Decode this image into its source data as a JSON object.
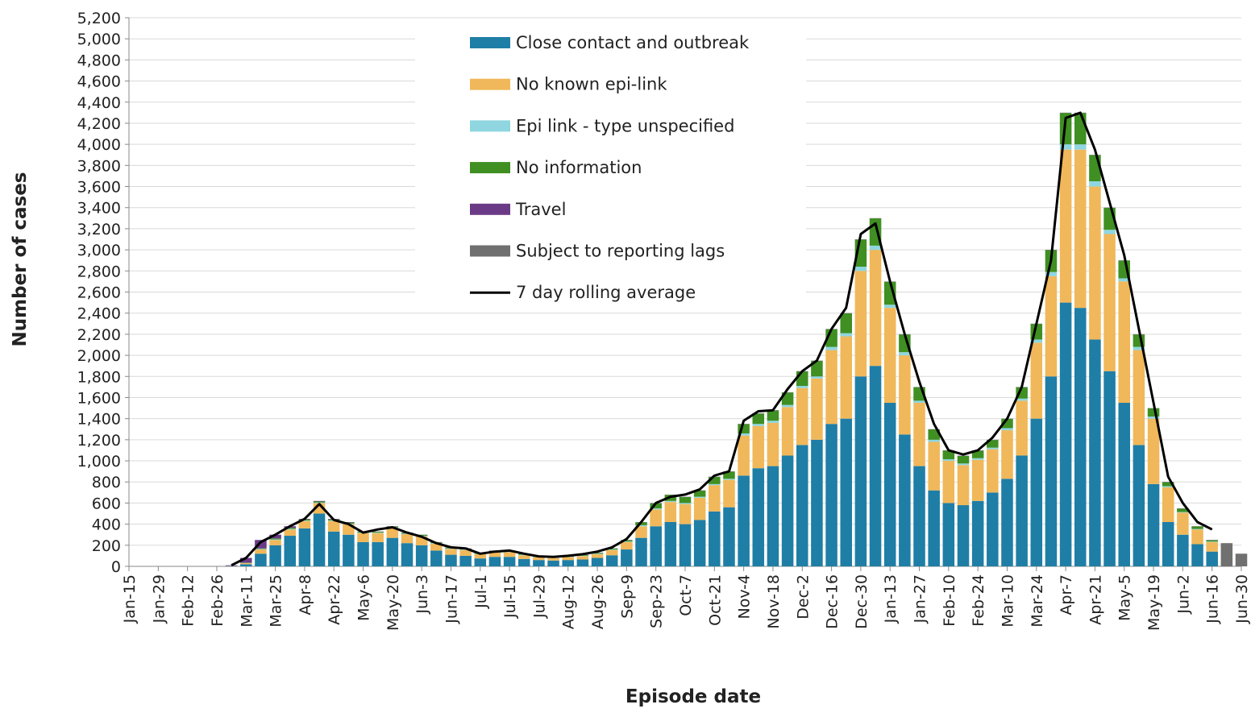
{
  "chart_data": {
    "type": "bar",
    "stacked": true,
    "x_label": "Episode date",
    "y_label": "Number of cases",
    "categories": [
      "Jan-15",
      null,
      "Jan-29",
      null,
      "Feb-12",
      null,
      "Feb-26",
      null,
      "Mar-11",
      null,
      "Mar-25",
      null,
      "Apr-8",
      null,
      "Apr-22",
      null,
      "May-6",
      null,
      "May-20",
      null,
      "Jun-3",
      null,
      "Jun-17",
      null,
      "Jul-1",
      null,
      "Jul-15",
      null,
      "Jul-29",
      null,
      "Aug-12",
      null,
      "Aug-26",
      null,
      "Sep-9",
      null,
      "Sep-23",
      null,
      "Oct-7",
      null,
      "Oct-21",
      null,
      "Nov-4",
      null,
      "Nov-18",
      null,
      "Dec-2",
      null,
      "Dec-16",
      null,
      "Dec-30",
      null,
      "Jan-13",
      null,
      "Jan-27",
      null,
      "Feb-10",
      null,
      "Feb-24",
      null,
      "Mar-10",
      null,
      "Mar-24",
      null,
      "Apr-7",
      null,
      "Apr-21",
      null,
      "May-5",
      null,
      "May-19",
      null,
      "Jun-2",
      null,
      "Jun-16",
      null,
      "Jun-30"
    ],
    "series": [
      {
        "name": "Close contact and outbreak",
        "color": "#1f7ea6",
        "values": [
          0,
          0,
          0,
          0,
          0,
          0,
          0,
          3,
          20,
          120,
          200,
          290,
          360,
          500,
          330,
          300,
          230,
          230,
          270,
          220,
          200,
          150,
          110,
          100,
          75,
          90,
          90,
          70,
          60,
          55,
          60,
          65,
          80,
          105,
          160,
          270,
          380,
          420,
          400,
          440,
          520,
          560,
          860,
          930,
          950,
          1050,
          1150,
          1200,
          1350,
          1400,
          1800,
          1900,
          1550,
          1250,
          950,
          720,
          600,
          580,
          620,
          700,
          830,
          1050,
          1400,
          1800,
          2500,
          2450,
          2150,
          1850,
          1550,
          1150,
          780,
          420,
          300,
          210,
          140,
          0,
          0
        ]
      },
      {
        "name": "No known epi-link",
        "color": "#f0b85a",
        "values": [
          0,
          0,
          0,
          0,
          0,
          0,
          0,
          2,
          10,
          40,
          50,
          60,
          70,
          100,
          100,
          100,
          85,
          85,
          95,
          85,
          85,
          65,
          55,
          55,
          40,
          45,
          45,
          35,
          28,
          24,
          28,
          32,
          36,
          50,
          70,
          110,
          160,
          190,
          190,
          210,
          250,
          260,
          380,
          400,
          410,
          460,
          540,
          580,
          700,
          780,
          1000,
          1100,
          900,
          750,
          600,
          460,
          400,
          380,
          390,
          410,
          460,
          520,
          720,
          950,
          1450,
          1500,
          1450,
          1300,
          1150,
          900,
          620,
          330,
          210,
          140,
          90,
          0,
          0
        ]
      },
      {
        "name": "Epi link - type unspecified",
        "color": "#8fd6e0",
        "values": [
          0,
          0,
          0,
          0,
          0,
          0,
          0,
          0,
          2,
          5,
          5,
          5,
          5,
          5,
          5,
          5,
          5,
          5,
          5,
          5,
          5,
          5,
          5,
          5,
          5,
          5,
          5,
          5,
          4,
          4,
          4,
          4,
          4,
          4,
          5,
          10,
          10,
          10,
          10,
          10,
          10,
          10,
          20,
          20,
          20,
          20,
          20,
          20,
          30,
          30,
          40,
          40,
          30,
          30,
          20,
          20,
          15,
          15,
          15,
          15,
          20,
          20,
          30,
          40,
          50,
          50,
          50,
          40,
          30,
          30,
          20,
          10,
          5,
          5,
          5,
          0,
          0
        ]
      },
      {
        "name": "No information",
        "color": "#3f8f22",
        "values": [
          0,
          0,
          0,
          0,
          0,
          0,
          0,
          0,
          3,
          5,
          10,
          10,
          10,
          10,
          10,
          10,
          8,
          8,
          8,
          8,
          8,
          8,
          8,
          8,
          8,
          8,
          8,
          8,
          6,
          5,
          6,
          7,
          8,
          9,
          13,
          28,
          48,
          58,
          58,
          58,
          68,
          68,
          88,
          98,
          98,
          118,
          138,
          148,
          168,
          188,
          258,
          258,
          218,
          168,
          128,
          98,
          83,
          73,
          73,
          73,
          88,
          108,
          148,
          208,
          298,
          298,
          248,
          208,
          168,
          118,
          78,
          38,
          33,
          23,
          13,
          0,
          0
        ]
      },
      {
        "name": "Travel",
        "color": "#6b3a86",
        "values": [
          0,
          0,
          0,
          0,
          0,
          0,
          0,
          5,
          45,
          80,
          35,
          15,
          5,
          5,
          5,
          5,
          2,
          2,
          2,
          2,
          2,
          2,
          2,
          2,
          2,
          2,
          2,
          2,
          2,
          2,
          2,
          2,
          2,
          2,
          2,
          2,
          2,
          2,
          2,
          2,
          2,
          2,
          2,
          2,
          2,
          2,
          2,
          2,
          2,
          2,
          2,
          2,
          2,
          2,
          2,
          2,
          2,
          2,
          2,
          2,
          2,
          2,
          2,
          2,
          2,
          2,
          2,
          2,
          2,
          2,
          2,
          2,
          2,
          2,
          2,
          0,
          0
        ]
      },
      {
        "name": "Subject to reporting lags",
        "color": "#707070",
        "values": [
          0,
          0,
          0,
          0,
          0,
          0,
          0,
          0,
          0,
          0,
          0,
          0,
          0,
          0,
          0,
          0,
          0,
          0,
          0,
          0,
          0,
          0,
          0,
          0,
          0,
          0,
          0,
          0,
          0,
          0,
          0,
          0,
          0,
          0,
          0,
          0,
          0,
          0,
          0,
          0,
          0,
          0,
          0,
          0,
          0,
          0,
          0,
          0,
          0,
          0,
          0,
          0,
          0,
          0,
          0,
          0,
          0,
          0,
          0,
          0,
          0,
          0,
          0,
          0,
          0,
          0,
          0,
          0,
          0,
          0,
          0,
          0,
          0,
          0,
          0,
          220,
          120
        ]
      },
      {
        "name": "7 day rolling average",
        "type": "line",
        "color": "#000000",
        "values": [
          null,
          null,
          null,
          null,
          null,
          null,
          null,
          10,
          80,
          230,
          300,
          380,
          450,
          590,
          440,
          400,
          320,
          350,
          370,
          320,
          280,
          220,
          180,
          170,
          120,
          140,
          150,
          120,
          95,
          90,
          100,
          115,
          140,
          180,
          260,
          420,
          600,
          660,
          680,
          730,
          860,
          900,
          1380,
          1470,
          1480,
          1680,
          1850,
          1950,
          2250,
          2450,
          3150,
          3250,
          2700,
          2200,
          1750,
          1350,
          1100,
          1060,
          1100,
          1220,
          1400,
          1700,
          2300,
          2900,
          4250,
          4300,
          3950,
          3450,
          2950,
          2250,
          1550,
          850,
          600,
          420,
          350,
          null,
          null
        ]
      }
    ],
    "ylim": [
      0,
      5200
    ],
    "yticks": [
      0,
      200,
      400,
      600,
      800,
      {
        "value": 1000,
        "label": "1,000"
      },
      {
        "value": 1200,
        "label": "1,200"
      },
      {
        "value": 1400,
        "label": "1,400"
      },
      {
        "value": 1600,
        "label": "1,600"
      },
      {
        "value": 1800,
        "label": "1,800"
      },
      {
        "value": 2000,
        "label": "2,000"
      },
      {
        "value": 2200,
        "label": "2,200"
      },
      {
        "value": 2400,
        "label": "2,400"
      },
      {
        "value": 2600,
        "label": "2,600"
      },
      {
        "value": 2800,
        "label": "2,800"
      },
      {
        "value": 3000,
        "label": "3,000"
      },
      {
        "value": 3200,
        "label": "3,200"
      },
      {
        "value": 3400,
        "label": "3,400"
      },
      {
        "value": 3600,
        "label": "3,600"
      },
      {
        "value": 3800,
        "label": "3,800"
      },
      {
        "value": 4000,
        "label": "4,000"
      },
      {
        "value": 4200,
        "label": "4,200"
      },
      {
        "value": 4400,
        "label": "4,400"
      },
      {
        "value": 4600,
        "label": "4,600"
      },
      {
        "value": 4800,
        "label": "4,800"
      },
      {
        "value": 5000,
        "label": "5,000"
      },
      {
        "value": 5200,
        "label": "5,200"
      }
    ],
    "grid": true,
    "legend": "top"
  }
}
